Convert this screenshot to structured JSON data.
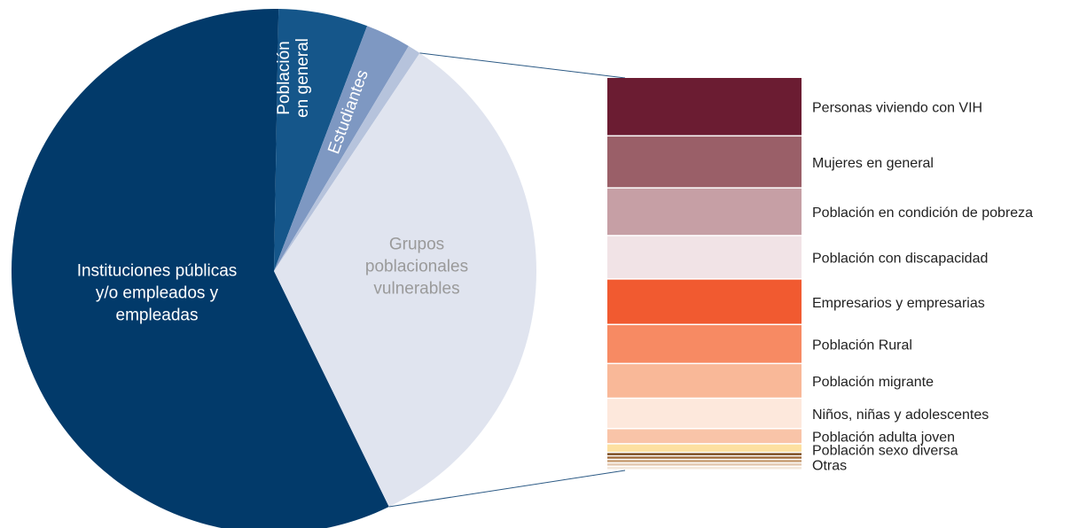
{
  "chart_data": {
    "type": "pie",
    "pie": {
      "slices": [
        {
          "name": "Instituciones públicas y/o empleados y empleadas",
          "lines": [
            "Instituciones públicas",
            "y/o empleados y",
            "empleadas"
          ],
          "value": 57.5,
          "color": "#023a6a",
          "label_color": "#ffffff"
        },
        {
          "name": "Población en general",
          "lines": [
            "Población",
            "en general"
          ],
          "value": 5.5,
          "color": "#15568a",
          "label_color": "#ffffff"
        },
        {
          "name": "Estudiantes",
          "lines": [
            "Estudiantes"
          ],
          "value": 2.8,
          "color": "#7e98c2",
          "label_color": "#ffffff"
        },
        {
          "name": "",
          "lines": [],
          "value": 0.8,
          "color": "#b6c3dc",
          "label_color": "#ffffff"
        },
        {
          "name": "Grupos poblacionales vulnerables",
          "lines": [
            "Grupos",
            "poblacionales",
            "vulnerables"
          ],
          "value": 33.4,
          "color": "#e0e4ef",
          "label_color": "#9a9a9a"
        }
      ]
    },
    "breakdown": {
      "of": "Grupos poblacionales vulnerables",
      "items": [
        {
          "name": "Personas viviendo con VIH",
          "value": 13.5,
          "color": "#6b1c32"
        },
        {
          "name": "Mujeres en general",
          "value": 12.0,
          "color": "#9a5f68"
        },
        {
          "name": "Población en condición de pobreza",
          "value": 11.0,
          "color": "#c69fa5"
        },
        {
          "name": "Población con discapacidad",
          "value": 10.0,
          "color": "#f1e3e6"
        },
        {
          "name": "Empresarios y empresarias",
          "value": 10.5,
          "color": "#f15a30"
        },
        {
          "name": "Población Rural",
          "value": 9.0,
          "color": "#f78a63"
        },
        {
          "name": "Población migrante",
          "value": 8.0,
          "color": "#f9b898"
        },
        {
          "name": "Niños, niñas y adolescentes",
          "value": 7.0,
          "color": "#fde8dc"
        },
        {
          "name": "Población adulta joven",
          "value": 3.5,
          "color": "#f9c4a8"
        },
        {
          "name": "Población sexo diversa",
          "value": 2.0,
          "color": "#fde0a0"
        },
        {
          "name": "",
          "value": 0.8,
          "color": "#7a4a1e"
        },
        {
          "name": "",
          "value": 0.8,
          "color": "#a06a3a"
        },
        {
          "name": "",
          "value": 0.8,
          "color": "#c49a70"
        },
        {
          "name": "Otras",
          "value": 0.8,
          "color": "#e2c8b0"
        },
        {
          "name": "",
          "value": 0.8,
          "color": "#f3e6da"
        }
      ]
    }
  }
}
